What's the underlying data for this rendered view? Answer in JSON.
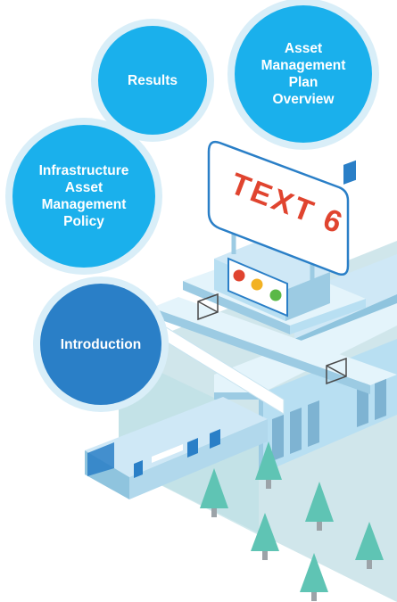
{
  "bubbles": {
    "results": {
      "label": "Results"
    },
    "overview": {
      "label": "Asset\nManagement\nPlan\nOverview"
    },
    "policy": {
      "label": "Infrastructure\nAsset\nManagement\nPolicy"
    },
    "intro": {
      "label": "Introduction"
    }
  },
  "billboard": {
    "text": "TEXT 6"
  },
  "colors": {
    "bubble_light": "#1ab0ec",
    "bubble_dark": "#2a7fc7",
    "bubble_ring": "#d9eef8",
    "station_face": "#b8dff2",
    "station_top": "#e4f4fb",
    "platform": "#a9d2da",
    "train": "#cfe8f6",
    "tree": "#5fc4b4",
    "billboard_text": "#e0442f"
  },
  "icons": {
    "traffic_light": "traffic-light-icon",
    "tree": "tree-icon",
    "train": "train-icon"
  }
}
